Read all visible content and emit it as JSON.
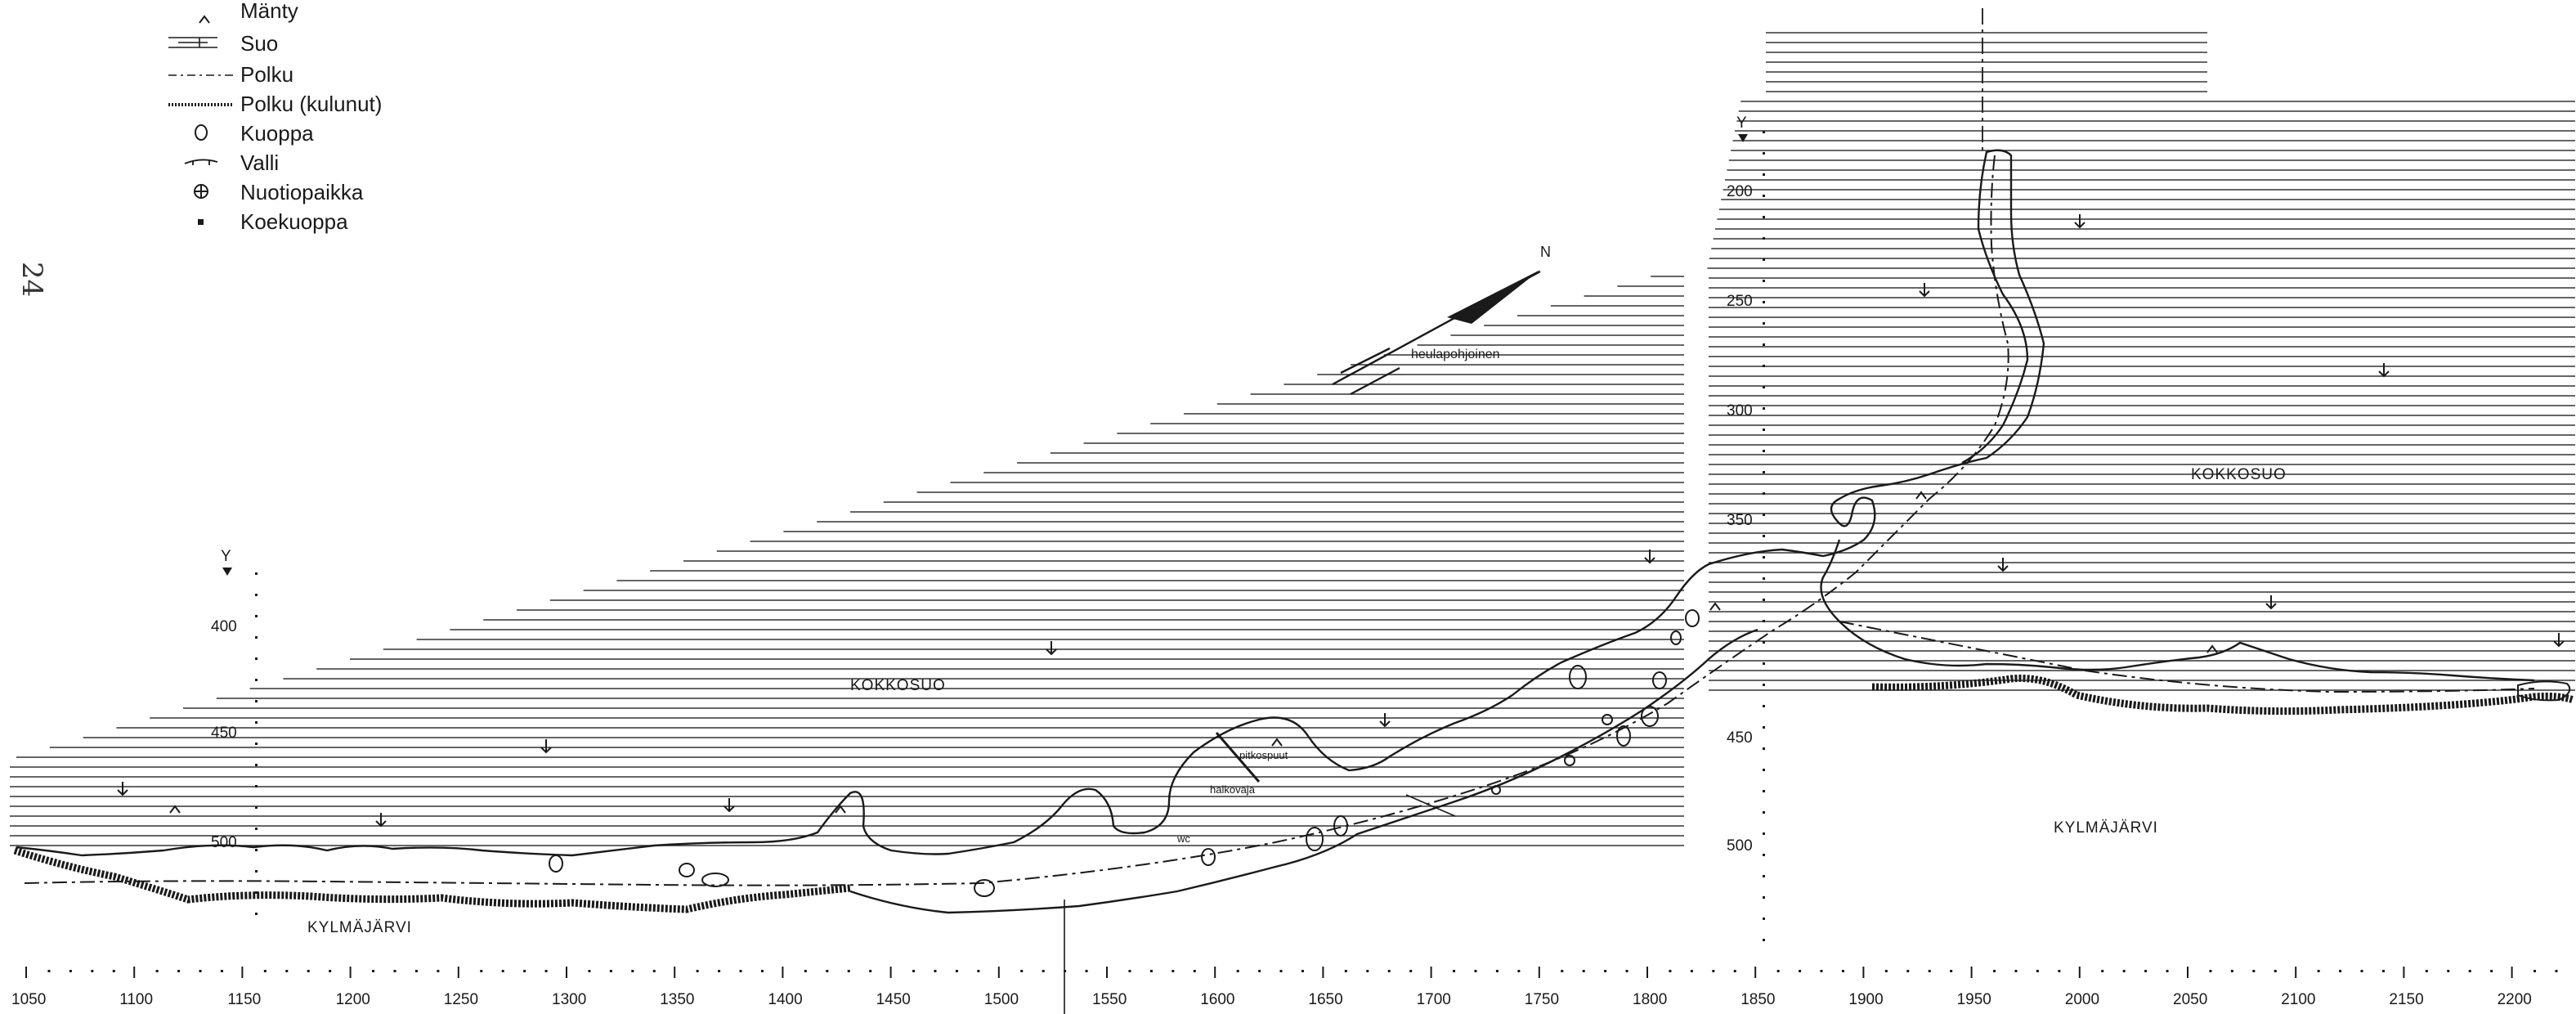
{
  "legend": {
    "items": [
      {
        "symbol": "pine-symbol",
        "label": "Mänty"
      },
      {
        "symbol": "bog-symbol",
        "label": "Suo"
      },
      {
        "symbol": "path-dashed-symbol",
        "label": "Polku"
      },
      {
        "symbol": "path-worn-symbol",
        "label": "Polku (kulunut)"
      },
      {
        "symbol": "pit-symbol",
        "label": "Kuoppa"
      },
      {
        "symbol": "embankment-symbol",
        "label": "Valli"
      },
      {
        "symbol": "fireplace-symbol",
        "label": "Nuotiopaikka"
      },
      {
        "symbol": "test-pit-symbol",
        "label": "Koekuoppa"
      }
    ]
  },
  "handwritten_page_number": "24",
  "north_arrow": {
    "label": "N",
    "caption": "heulapohjoinen"
  },
  "place_names": {
    "bog_left": "KOKKOSUO",
    "bog_right": "KOKKOSUO",
    "lake_left": "KYLMÄJÄRVI",
    "lake_right": "KYLMÄJÄRVI",
    "annotation_1": "pitkospuut",
    "annotation_2": "halkovaja",
    "annotation_3": "wc"
  },
  "x_axis": {
    "ticks": [
      "1050",
      "1100",
      "1150",
      "1200",
      "1250",
      "1300",
      "1350",
      "1400",
      "1450",
      "1500",
      "1550",
      "1600",
      "1650",
      "1700",
      "1750",
      "1800",
      "1850",
      "1900",
      "1950",
      "2000",
      "2050",
      "2100",
      "2150",
      "2200"
    ]
  },
  "y_axis_left": {
    "title": "Y",
    "ticks": [
      "400",
      "450",
      "500"
    ]
  },
  "y_axis_right": {
    "title": "Y",
    "ticks": [
      "200",
      "250",
      "300",
      "350",
      "450",
      "500"
    ]
  }
}
